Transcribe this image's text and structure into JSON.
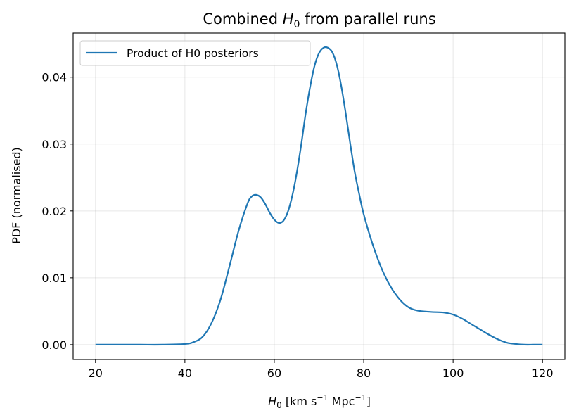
{
  "chart_data": {
    "type": "line",
    "title_pre": "Combined ",
    "title_sym": "H",
    "title_sub": "0",
    "title_post": " from parallel runs",
    "xlabel_sym": "H",
    "xlabel_sub": "0",
    "xlabel_text1": " [km s",
    "xlabel_sup1": "−1",
    "xlabel_text2": " Mpc",
    "xlabel_sup2": "−1",
    "xlabel_text3": "]",
    "ylabel": "PDF (normalised)",
    "xlim": [
      15,
      125
    ],
    "ylim": [
      -0.00222,
      0.0466
    ],
    "xticks": [
      20,
      40,
      60,
      80,
      100,
      120
    ],
    "yticks": [
      0.0,
      0.01,
      0.02,
      0.03,
      0.04
    ],
    "ytick_labels": [
      "0.00",
      "0.01",
      "0.02",
      "0.03",
      "0.04"
    ],
    "grid": true,
    "legend_position": "upper left",
    "line_color": "#1f77b4",
    "series": [
      {
        "name": "Product of H0 posteriors",
        "x": [
          20,
          25,
          30,
          35,
          40,
          42,
          44,
          46,
          48,
          50,
          52,
          54,
          55,
          56,
          57,
          58,
          59,
          60,
          61,
          62,
          63,
          64,
          65,
          66,
          67,
          68,
          69,
          70,
          71,
          72,
          73,
          74,
          75,
          76,
          77,
          78,
          79,
          80,
          82,
          84,
          86,
          88,
          90,
          92,
          95,
          98,
          100,
          102,
          104,
          106,
          108,
          110,
          112,
          114,
          116,
          118,
          120
        ],
        "values": [
          0.0,
          0.0,
          0.0,
          0.0,
          0.0001,
          0.0004,
          0.0012,
          0.0033,
          0.0068,
          0.0118,
          0.017,
          0.0211,
          0.0222,
          0.0224,
          0.022,
          0.021,
          0.0197,
          0.0187,
          0.0182,
          0.0185,
          0.0198,
          0.0222,
          0.0256,
          0.0298,
          0.0345,
          0.0385,
          0.0417,
          0.0436,
          0.0444,
          0.0444,
          0.0437,
          0.0418,
          0.0386,
          0.0345,
          0.03,
          0.0258,
          0.0225,
          0.0195,
          0.015,
          0.0114,
          0.0087,
          0.0068,
          0.0056,
          0.0051,
          0.0049,
          0.0048,
          0.0045,
          0.0039,
          0.0031,
          0.0023,
          0.0015,
          0.0008,
          0.0003,
          0.0001,
          0.0,
          0.0,
          0.0
        ]
      }
    ]
  }
}
